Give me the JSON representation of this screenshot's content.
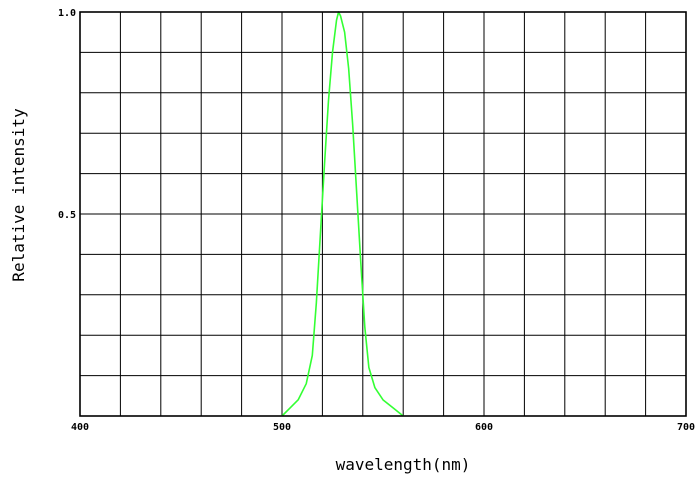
{
  "chart_data": {
    "type": "line",
    "title": "",
    "xlabel": "wavelength(nm)",
    "ylabel": "Relative intensity",
    "xlim": [
      400,
      700
    ],
    "ylim": [
      0,
      1.0
    ],
    "grid": true,
    "legend": "none",
    "x_ticks": [
      {
        "value": 400,
        "label": "400"
      },
      {
        "value": 500,
        "label": "500"
      },
      {
        "value": 600,
        "label": "600"
      },
      {
        "value": 700,
        "label": "700"
      }
    ],
    "y_ticks": [
      {
        "value": 0.5,
        "label": "0.5"
      },
      {
        "value": 1.0,
        "label": "1.0"
      }
    ],
    "grid_x_step": 20,
    "grid_y_step": 0.1,
    "series": [
      {
        "color": "#33ff33",
        "x": [
          500,
          504,
          508,
          512,
          515,
          517,
          519,
          521,
          523,
          525,
          527,
          528,
          529,
          531,
          533,
          535,
          537,
          539,
          541,
          543,
          546,
          550,
          555,
          560
        ],
        "y": [
          0.0,
          0.02,
          0.04,
          0.08,
          0.15,
          0.28,
          0.45,
          0.62,
          0.78,
          0.9,
          0.98,
          1.0,
          0.99,
          0.95,
          0.86,
          0.72,
          0.55,
          0.38,
          0.22,
          0.12,
          0.07,
          0.04,
          0.02,
          0.0
        ]
      }
    ]
  }
}
